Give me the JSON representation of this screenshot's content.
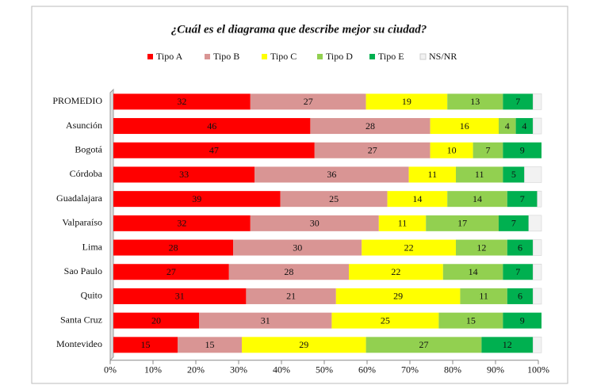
{
  "chart_data": {
    "type": "stacked_bar_horizontal",
    "title": "¿Cuál es el diagrama que describe mejor su ciudad?",
    "categories": [
      "PROMEDIO",
      "Asunción",
      "Bogotá",
      "Córdoba",
      "Guadalajara",
      "Valparaíso",
      "Lima",
      "Sao Paulo",
      "Quito",
      "Santa Cruz",
      "Montevideo"
    ],
    "series": [
      {
        "name": "Tipo A",
        "color": "#ff0000",
        "values": [
          32,
          46,
          47,
          33,
          39,
          32,
          28,
          27,
          31,
          20,
          15
        ]
      },
      {
        "name": "Tipo B",
        "color": "#d99594",
        "values": [
          27,
          28,
          27,
          36,
          25,
          30,
          30,
          28,
          21,
          31,
          15
        ]
      },
      {
        "name": "Tipo C",
        "color": "#ffff00",
        "values": [
          19,
          16,
          10,
          11,
          14,
          11,
          22,
          22,
          29,
          25,
          29
        ]
      },
      {
        "name": "Tipo D",
        "color": "#92d050",
        "values": [
          13,
          4,
          7,
          11,
          14,
          17,
          12,
          14,
          11,
          15,
          27
        ]
      },
      {
        "name": "Tipo E",
        "color": "#00b050",
        "values": [
          7,
          4,
          9,
          5,
          7,
          7,
          6,
          7,
          6,
          9,
          12
        ]
      },
      {
        "name": "NS/NR",
        "color": "#f2f2f2",
        "values": [
          2,
          2,
          0,
          4,
          1,
          3,
          2,
          2,
          2,
          0,
          2
        ]
      }
    ],
    "xlim": [
      0,
      100
    ],
    "xticks": [
      {
        "value": 0,
        "label": "0%"
      },
      {
        "value": 10,
        "label": "10%"
      },
      {
        "value": 20,
        "label": "20%"
      },
      {
        "value": 30,
        "label": "30%"
      },
      {
        "value": 40,
        "label": "40%"
      },
      {
        "value": 50,
        "label": "50%"
      },
      {
        "value": 60,
        "label": "60%"
      },
      {
        "value": 70,
        "label": "70%"
      },
      {
        "value": 80,
        "label": "80%"
      },
      {
        "value": 90,
        "label": "90%"
      },
      {
        "value": 100,
        "label": "100%"
      }
    ],
    "legend": "top"
  }
}
